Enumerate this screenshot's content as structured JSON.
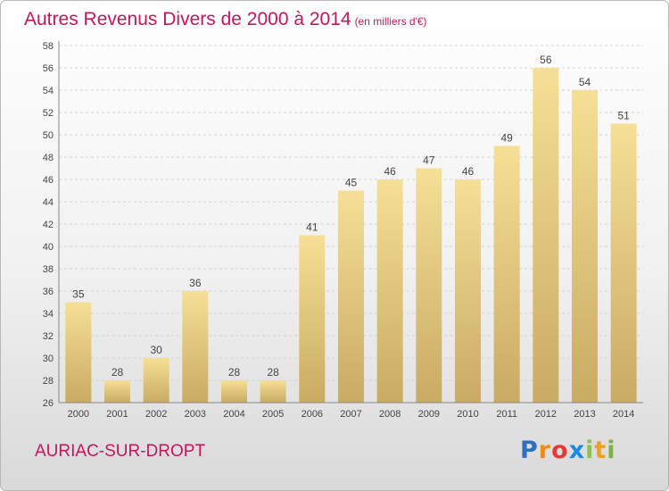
{
  "chart_data": {
    "type": "bar",
    "title": "Autres Revenus Divers de 2000 à 2014",
    "subtitle": "(en milliers d'€)",
    "xlabel": "",
    "ylabel": "",
    "categories": [
      "2000",
      "2001",
      "2002",
      "2003",
      "2004",
      "2005",
      "2006",
      "2007",
      "2008",
      "2009",
      "2010",
      "2011",
      "2012",
      "2013",
      "2014"
    ],
    "values": [
      35,
      28,
      30,
      36,
      28,
      28,
      41,
      45,
      46,
      47,
      46,
      49,
      56,
      54,
      51
    ],
    "ylim": [
      26,
      58
    ],
    "yticks": [
      26,
      28,
      30,
      32,
      34,
      36,
      38,
      40,
      42,
      44,
      46,
      48,
      50,
      52,
      54,
      56,
      58
    ],
    "grid": true,
    "legend": "none",
    "bar_color": "#e8cc7e",
    "title_color": "#c2185b"
  },
  "footer": {
    "commune": "AURIAC-SUR-DROPT"
  },
  "logo": {
    "text": "Proxiti",
    "letters": [
      "P",
      "r",
      "o",
      "x",
      "i",
      "t",
      "i"
    ],
    "colors": [
      "#2e6fbf",
      "#f08a1c",
      "#e53935",
      "#1e88e5",
      "#8bc34a",
      "#f0a020",
      "#7cb342"
    ]
  }
}
